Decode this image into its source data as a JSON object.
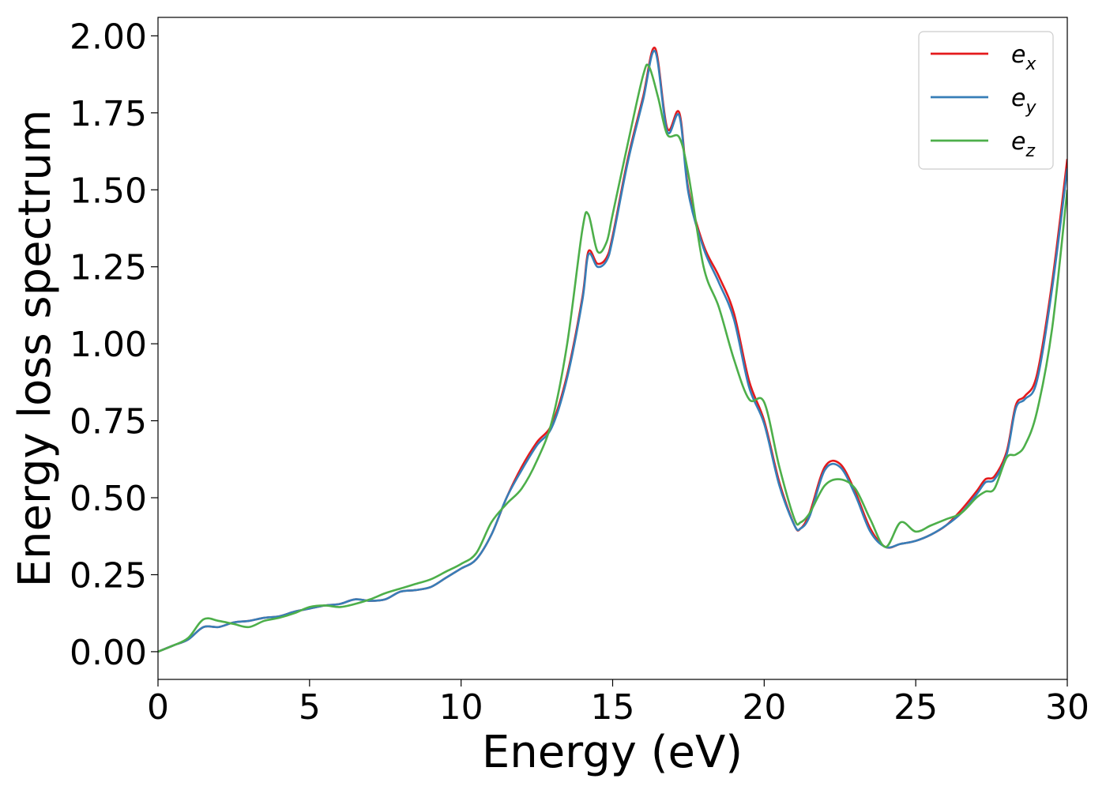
{
  "chart_data": {
    "type": "line",
    "xlabel": "Energy (eV)",
    "ylabel": "Energy loss spectrum",
    "xlim": [
      0,
      30
    ],
    "ylim": [
      -0.09,
      2.06
    ],
    "xticks": [
      0,
      5,
      10,
      15,
      20,
      25,
      30
    ],
    "xtick_labels": [
      "0",
      "5",
      "10",
      "15",
      "20",
      "25",
      "30"
    ],
    "yticks": [
      0,
      0.25,
      0.5,
      0.75,
      1.0,
      1.25,
      1.5,
      1.75,
      2.0
    ],
    "ytick_labels": [
      "0.00",
      "0.25",
      "0.50",
      "0.75",
      "1.00",
      "1.25",
      "1.50",
      "1.75",
      "2.00"
    ],
    "grid": false,
    "legend_position": "top-right",
    "series": [
      {
        "name": "e",
        "subscript": "x",
        "color": "#e41a1c",
        "x": [
          0,
          0.5,
          1.0,
          1.5,
          2.0,
          2.5,
          3.0,
          3.5,
          4.0,
          4.5,
          5.0,
          5.5,
          6.0,
          6.5,
          7.0,
          7.5,
          8.0,
          8.5,
          9.0,
          9.5,
          10.0,
          10.5,
          11.0,
          11.5,
          12.0,
          12.5,
          13.0,
          13.5,
          14.0,
          14.2,
          14.5,
          14.8,
          15.0,
          15.5,
          16.0,
          16.4,
          16.8,
          17.2,
          17.5,
          18.0,
          18.5,
          19.0,
          19.5,
          20.0,
          20.5,
          21.0,
          21.2,
          21.5,
          22.0,
          22.5,
          23.0,
          23.5,
          24.0,
          24.5,
          25.0,
          25.5,
          26.0,
          26.5,
          27.0,
          27.3,
          27.6,
          28.0,
          28.3,
          28.6,
          29.0,
          29.5,
          30.0
        ],
        "y": [
          0.0,
          0.02,
          0.04,
          0.08,
          0.08,
          0.095,
          0.1,
          0.11,
          0.115,
          0.13,
          0.14,
          0.15,
          0.155,
          0.17,
          0.165,
          0.17,
          0.195,
          0.2,
          0.21,
          0.24,
          0.27,
          0.3,
          0.38,
          0.5,
          0.6,
          0.68,
          0.74,
          0.9,
          1.15,
          1.3,
          1.26,
          1.28,
          1.35,
          1.6,
          1.8,
          1.96,
          1.7,
          1.75,
          1.5,
          1.32,
          1.22,
          1.1,
          0.88,
          0.75,
          0.55,
          0.41,
          0.4,
          0.45,
          0.6,
          0.61,
          0.52,
          0.4,
          0.34,
          0.35,
          0.36,
          0.38,
          0.41,
          0.46,
          0.52,
          0.56,
          0.57,
          0.65,
          0.8,
          0.83,
          0.9,
          1.2,
          1.6
        ]
      },
      {
        "name": "e",
        "subscript": "y",
        "color": "#377eb8",
        "x": [
          0,
          0.5,
          1.0,
          1.5,
          2.0,
          2.5,
          3.0,
          3.5,
          4.0,
          4.5,
          5.0,
          5.5,
          6.0,
          6.5,
          7.0,
          7.5,
          8.0,
          8.5,
          9.0,
          9.5,
          10.0,
          10.5,
          11.0,
          11.5,
          12.0,
          12.5,
          13.0,
          13.5,
          14.0,
          14.2,
          14.5,
          14.8,
          15.0,
          15.5,
          16.0,
          16.4,
          16.8,
          17.2,
          17.5,
          18.0,
          18.5,
          19.0,
          19.5,
          20.0,
          20.5,
          21.0,
          21.2,
          21.5,
          22.0,
          22.5,
          23.0,
          23.5,
          24.0,
          24.5,
          25.0,
          25.5,
          26.0,
          26.5,
          27.0,
          27.3,
          27.6,
          28.0,
          28.3,
          28.6,
          29.0,
          29.5,
          30.0
        ],
        "y": [
          0.0,
          0.02,
          0.04,
          0.08,
          0.08,
          0.095,
          0.1,
          0.11,
          0.115,
          0.13,
          0.14,
          0.15,
          0.155,
          0.17,
          0.165,
          0.17,
          0.195,
          0.2,
          0.21,
          0.24,
          0.27,
          0.3,
          0.38,
          0.5,
          0.59,
          0.67,
          0.73,
          0.89,
          1.14,
          1.29,
          1.25,
          1.27,
          1.34,
          1.59,
          1.79,
          1.95,
          1.69,
          1.74,
          1.49,
          1.31,
          1.2,
          1.08,
          0.86,
          0.74,
          0.54,
          0.41,
          0.4,
          0.44,
          0.59,
          0.6,
          0.51,
          0.39,
          0.34,
          0.35,
          0.36,
          0.38,
          0.41,
          0.45,
          0.51,
          0.55,
          0.56,
          0.64,
          0.79,
          0.82,
          0.88,
          1.18,
          1.57
        ]
      },
      {
        "name": "e",
        "subscript": "z",
        "color": "#4daf4a",
        "x": [
          0,
          0.5,
          1.0,
          1.5,
          2.0,
          2.5,
          3.0,
          3.5,
          4.0,
          4.5,
          5.0,
          5.5,
          6.0,
          6.5,
          7.0,
          7.5,
          8.0,
          8.5,
          9.0,
          9.5,
          10.0,
          10.5,
          11.0,
          11.5,
          12.0,
          12.5,
          13.0,
          13.5,
          14.0,
          14.2,
          14.5,
          14.8,
          15.0,
          15.5,
          16.0,
          16.2,
          16.5,
          16.8,
          17.2,
          17.5,
          18.0,
          18.5,
          19.0,
          19.5,
          20.0,
          20.5,
          21.0,
          21.2,
          21.5,
          22.0,
          22.5,
          23.0,
          23.5,
          24.0,
          24.5,
          25.0,
          25.5,
          26.0,
          26.5,
          27.0,
          27.3,
          27.6,
          28.0,
          28.3,
          28.6,
          29.0,
          29.5,
          30.0
        ],
        "y": [
          0.0,
          0.02,
          0.045,
          0.105,
          0.1,
          0.09,
          0.08,
          0.1,
          0.11,
          0.125,
          0.145,
          0.15,
          0.145,
          0.155,
          0.17,
          0.19,
          0.205,
          0.22,
          0.235,
          0.26,
          0.285,
          0.32,
          0.42,
          0.48,
          0.53,
          0.62,
          0.75,
          1.0,
          1.37,
          1.42,
          1.3,
          1.33,
          1.42,
          1.65,
          1.87,
          1.9,
          1.8,
          1.68,
          1.67,
          1.55,
          1.25,
          1.12,
          0.95,
          0.82,
          0.81,
          0.6,
          0.43,
          0.42,
          0.45,
          0.54,
          0.56,
          0.53,
          0.43,
          0.34,
          0.42,
          0.39,
          0.41,
          0.43,
          0.45,
          0.5,
          0.52,
          0.53,
          0.63,
          0.64,
          0.67,
          0.78,
          1.05,
          1.5
        ]
      }
    ]
  }
}
